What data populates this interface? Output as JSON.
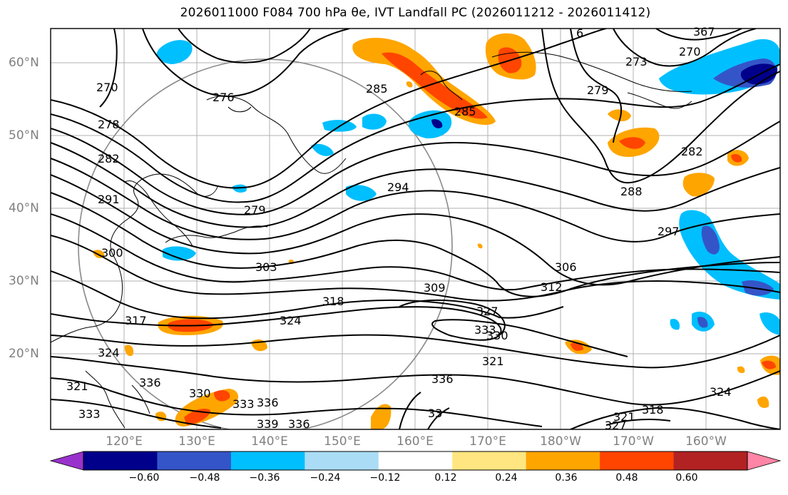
{
  "title": "2026011000 F084 700 hPa θe, IVT Landfall PC (2026011212 - 2026011412)",
  "map": {
    "lat_labels": [
      "60°N",
      "50°N",
      "40°N",
      "30°N",
      "20°N"
    ],
    "lon_labels": [
      "120°E",
      "130°E",
      "140°E",
      "150°E",
      "160°E",
      "170°E",
      "180°W",
      "170°W",
      "160°W"
    ],
    "contour_labels": [
      "270",
      "276",
      "278",
      "282",
      "285",
      "285",
      "279",
      "282",
      "273",
      "270",
      "367",
      "6",
      "279",
      "291",
      "294",
      "288",
      "297",
      "300",
      "303",
      "306",
      "309",
      "312",
      "318",
      "317",
      "324",
      "327",
      "330",
      "333",
      "321",
      "336",
      "324",
      "321",
      "333",
      "336",
      "330",
      "333",
      "336",
      "339",
      "336",
      "318",
      "321",
      "327",
      "324",
      "33"
    ]
  },
  "colorbar": {
    "ticks": [
      "−0.60",
      "−0.48",
      "−0.36",
      "−0.24",
      "−0.12",
      "0.12",
      "0.24",
      "0.36",
      "0.48",
      "0.60"
    ],
    "colors": [
      "#9932cc",
      "#00008b",
      "#3455c8",
      "#00bfff",
      "#aadcf5",
      "#ffffff",
      "#ffe680",
      "#ffa500",
      "#ff4500",
      "#b22222",
      "#ff85a6"
    ]
  }
}
